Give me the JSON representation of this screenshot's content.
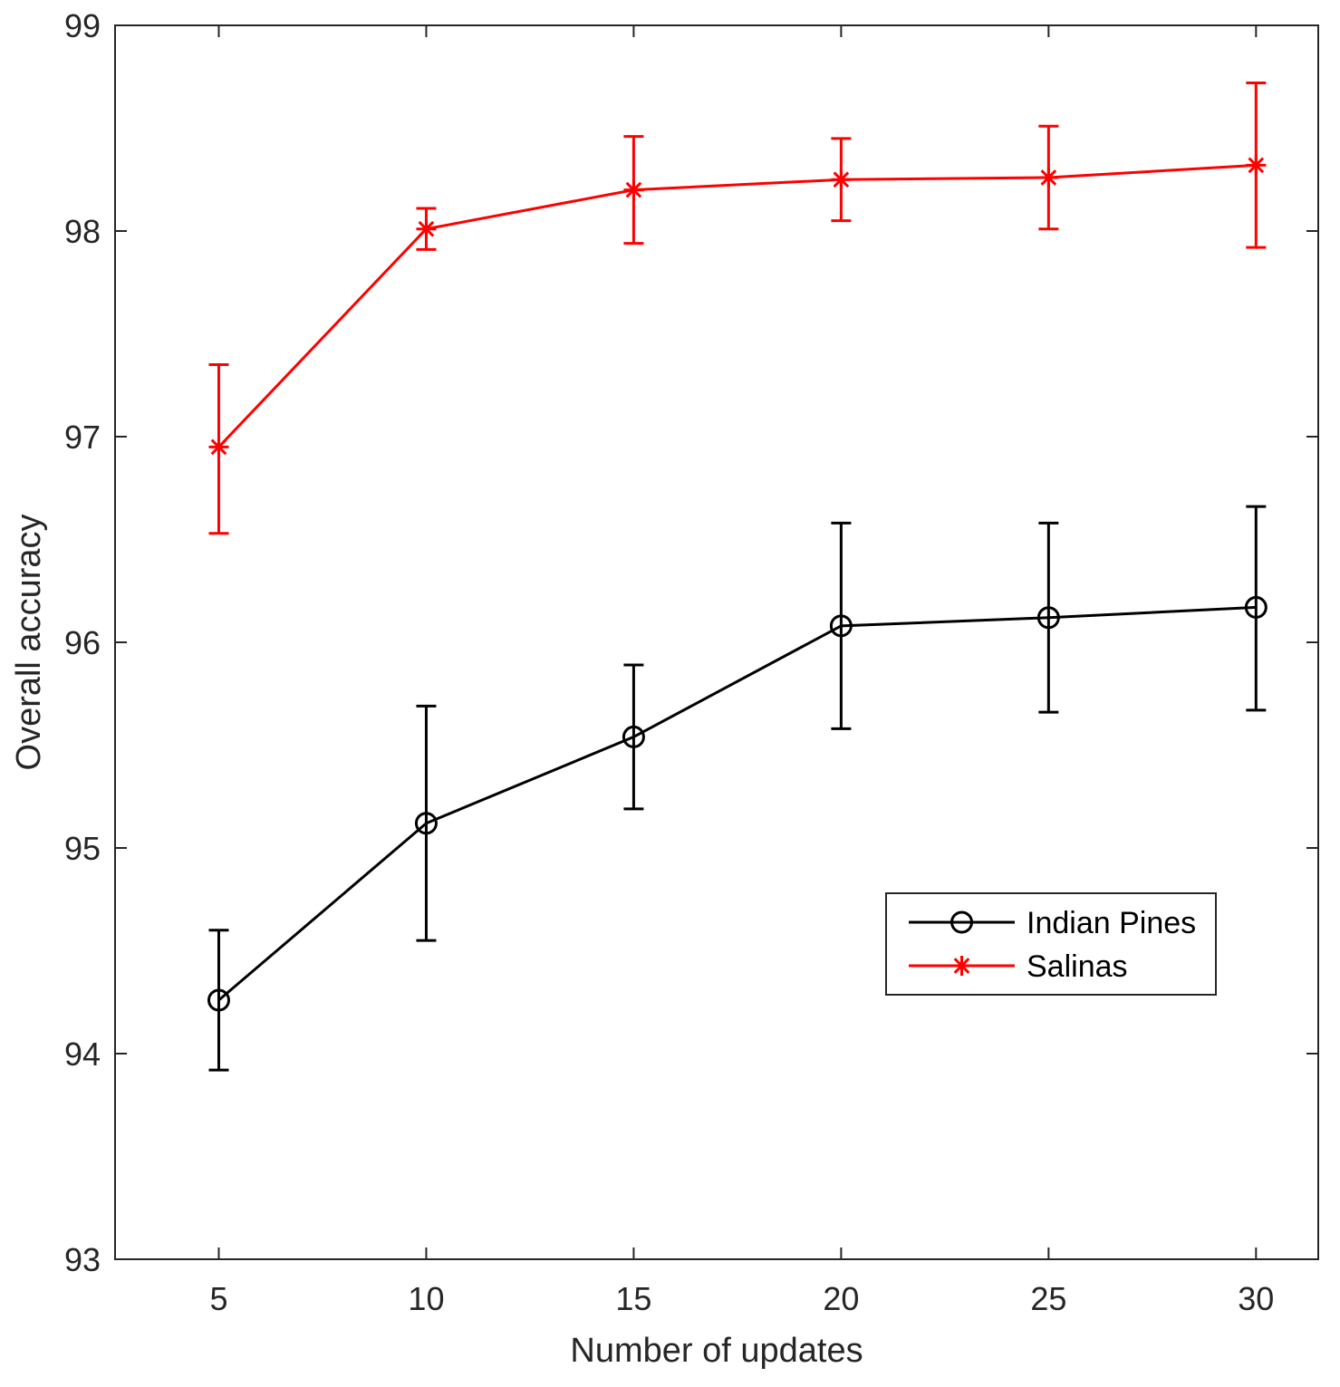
{
  "chart_data": {
    "type": "line",
    "title": "",
    "xlabel": "Number of updates",
    "ylabel": "Overall accuracy",
    "x": [
      5,
      10,
      15,
      20,
      25,
      30
    ],
    "xlim": [
      2.5,
      31.5
    ],
    "ylim": [
      93,
      99
    ],
    "xticks": [
      5,
      10,
      15,
      20,
      25,
      30
    ],
    "yticks": [
      93,
      94,
      95,
      96,
      97,
      98,
      99
    ],
    "grid": false,
    "legend_position": "center-right",
    "series": [
      {
        "name": "Indian Pines",
        "color": "#000000",
        "marker": "circle",
        "values": [
          94.26,
          95.12,
          95.54,
          96.08,
          96.12,
          96.17
        ],
        "err_low": [
          93.92,
          94.55,
          95.19,
          95.58,
          95.66,
          95.67
        ],
        "err_high": [
          94.6,
          95.69,
          95.89,
          96.58,
          96.58,
          96.66
        ]
      },
      {
        "name": "Salinas",
        "color": "#ff0000",
        "marker": "star",
        "values": [
          96.95,
          98.01,
          98.2,
          98.25,
          98.26,
          98.32
        ],
        "err_low": [
          96.53,
          97.91,
          97.94,
          98.05,
          98.01,
          97.92
        ],
        "err_high": [
          97.35,
          98.11,
          98.46,
          98.45,
          98.51,
          98.72
        ]
      }
    ]
  }
}
